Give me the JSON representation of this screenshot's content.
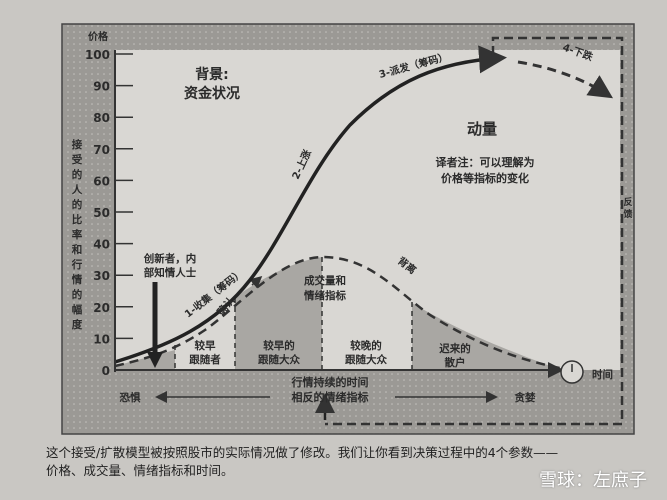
{
  "diagram": {
    "y_axis_title": "价格",
    "y_axis_side_label": "接受的人的比率和行情的幅度",
    "y_ticks": [
      "0",
      "10",
      "20",
      "30",
      "40",
      "50",
      "60",
      "70",
      "80",
      "90",
      "100"
    ],
    "background_label": [
      "背景:",
      "资金状况"
    ],
    "momentum_label": "动量",
    "translator_note": [
      "译者注：可以理解为",
      "价格等指标的变化"
    ],
    "phases": [
      "1-收集（筹码）",
      "2-上涨",
      "3-派发（筹码）",
      "4-下跌"
    ],
    "confirm_label": "确认",
    "divergence_label": "背离",
    "innovators_label": [
      "创新者，内",
      "部知情人士"
    ],
    "volume_label": [
      "成交量和",
      "情绪指标"
    ],
    "segments": [
      [
        "较早",
        "跟随者"
      ],
      [
        "较早的",
        "跟随大众"
      ],
      [
        "较晚的",
        "跟随大众"
      ],
      [
        "迟来的",
        "散户"
      ]
    ],
    "time_label": "时间",
    "duration_label": [
      "行情持续的时间",
      "相反的情绪指标"
    ],
    "fear_label": "恐惧",
    "greed_label": "贪婪",
    "feedback_label": "反馈"
  },
  "caption": [
    "这个接受/扩散模型被按照股市的实际情况做了修改。我们让你看到决策过程中的4个参数——",
    "价格、成交量、情绪指标和时间。"
  ],
  "watermark": "雪球：左庶子"
}
